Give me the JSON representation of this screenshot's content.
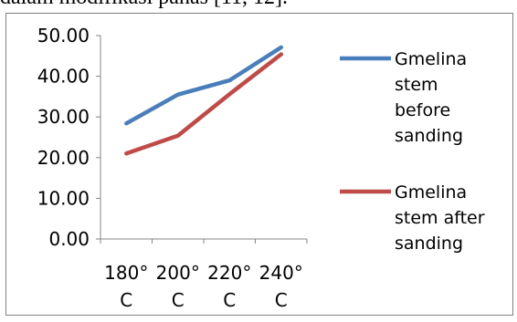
{
  "page": {
    "top_text": "dalam modifikasi panas [11, 12]."
  },
  "chart_data": {
    "type": "line",
    "categories": [
      "180° C",
      "200° C",
      "220° C",
      "240° C"
    ],
    "category_lines": [
      [
        "180°",
        "C"
      ],
      [
        "200°",
        "C"
      ],
      [
        "220°",
        "C"
      ],
      [
        "240°",
        "C"
      ]
    ],
    "y_ticks": [
      "0.00",
      "10.00",
      "20.00",
      "30.00",
      "40.00",
      "50.00"
    ],
    "ylim": [
      0,
      50
    ],
    "grid": false,
    "legend_position": "right",
    "series": [
      {
        "name": "Gmelina stem before sanding",
        "legend_lines": [
          "Gmelina",
          "stem",
          "before",
          "sanding"
        ],
        "color": "#4a7ebb",
        "values": [
          28.4,
          35.5,
          39.0,
          47.1
        ]
      },
      {
        "name": "Gmelina stem after sanding",
        "legend_lines": [
          "Gmelina",
          "stem after",
          "sanding"
        ],
        "color": "#be4b48",
        "values": [
          21.0,
          25.4,
          35.6,
          45.4
        ]
      }
    ],
    "title": "",
    "xlabel": "",
    "ylabel": ""
  }
}
